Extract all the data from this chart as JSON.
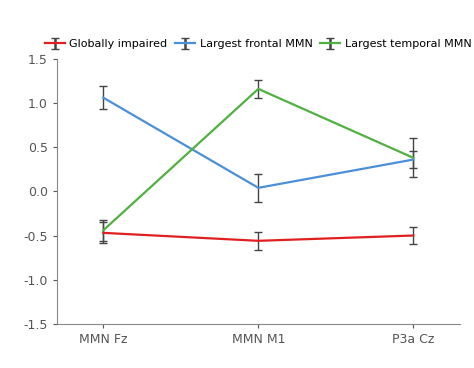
{
  "x_labels": [
    "MMN Fz",
    "MMN M1",
    "P3a Cz"
  ],
  "x_positions": [
    0,
    1,
    2
  ],
  "series": [
    {
      "name": "Globally impaired",
      "color": "#e02020",
      "values": [
        -0.47,
        -0.56,
        -0.5
      ],
      "errors": [
        0.12,
        0.1,
        0.1
      ]
    },
    {
      "name": "Largest frontal MMN",
      "color": "#4a90d9",
      "values": [
        1.06,
        0.04,
        0.36
      ],
      "errors": [
        0.13,
        0.16,
        0.1
      ]
    },
    {
      "name": "Largest temporal MMN",
      "color": "#50b040",
      "values": [
        -0.44,
        1.16,
        0.38
      ],
      "errors": [
        0.12,
        0.1,
        0.22
      ]
    }
  ],
  "ylim": [
    -1.5,
    1.5
  ],
  "yticks": [
    -1.5,
    -1.0,
    -0.5,
    0.0,
    0.5,
    1.0,
    1.5
  ],
  "background_color": "#ffffff",
  "capsize": 3,
  "linewidth": 1.6,
  "elinewidth": 1.0,
  "ecolor": "#444444",
  "tick_fontsize": 9,
  "legend_fontsize": 8
}
